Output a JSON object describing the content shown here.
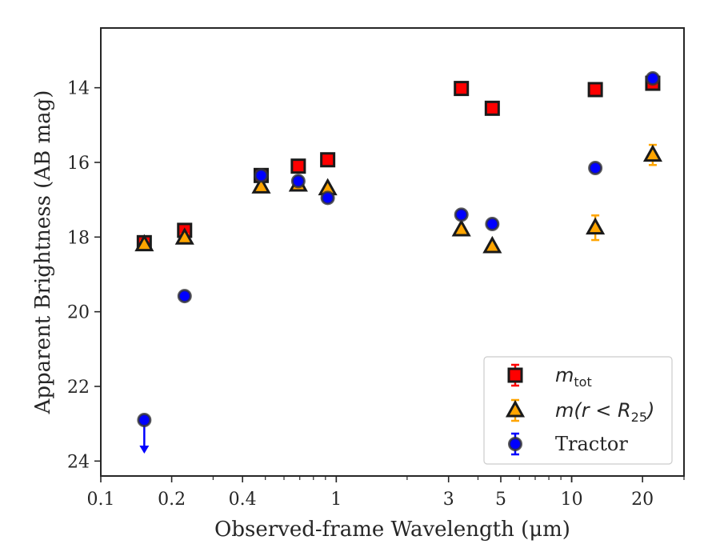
{
  "chart_data": {
    "type": "scatter",
    "xlabel": "Observed-frame Wavelength (μm)",
    "ylabel": "Apparent Brightness (AB mag)",
    "xscale": "log",
    "xlim": [
      0.1,
      30
    ],
    "ylim": [
      24.4,
      12.4
    ],
    "y_inverted": true,
    "x_ticks": [
      0.1,
      0.2,
      0.4,
      1,
      3,
      5,
      10,
      20
    ],
    "x_tick_labels": [
      "0.1",
      "0.2",
      "0.4",
      "1",
      "3",
      "5",
      "10",
      "20"
    ],
    "y_ticks": [
      14,
      16,
      18,
      20,
      22,
      24
    ],
    "y_tick_labels": [
      "14",
      "16",
      "18",
      "20",
      "22",
      "24"
    ],
    "grid": false,
    "legend_position": "lower right",
    "series": [
      {
        "name": "m_tot",
        "marker": "square",
        "color": "#ff0000",
        "edge": "#1a1a1a",
        "points": [
          {
            "x": 0.153,
            "y": 18.15,
            "err": 0.1
          },
          {
            "x": 0.227,
            "y": 17.82,
            "err": 0.1
          },
          {
            "x": 0.48,
            "y": 16.35,
            "err": 0.05
          },
          {
            "x": 0.69,
            "y": 16.1,
            "err": 0.05
          },
          {
            "x": 0.92,
            "y": 15.93,
            "err": 0.05
          },
          {
            "x": 3.4,
            "y": 14.02,
            "err": 0.05
          },
          {
            "x": 4.6,
            "y": 14.55,
            "err": 0.05
          },
          {
            "x": 12.6,
            "y": 14.05,
            "err": 0.05
          },
          {
            "x": 22.1,
            "y": 13.88,
            "err": 0.1
          }
        ]
      },
      {
        "name": "m(r < R25)",
        "marker": "triangle",
        "color": "#ffa500",
        "edge": "#1a1a1a",
        "points": [
          {
            "x": 0.153,
            "y": 18.2,
            "err": 0.1
          },
          {
            "x": 0.227,
            "y": 18.02,
            "err": 0.1
          },
          {
            "x": 0.48,
            "y": 16.65,
            "err": 0.05
          },
          {
            "x": 0.69,
            "y": 16.6,
            "err": 0.05
          },
          {
            "x": 0.92,
            "y": 16.7,
            "err": 0.05
          },
          {
            "x": 3.4,
            "y": 17.8,
            "err": 0.05
          },
          {
            "x": 4.6,
            "y": 18.25,
            "err": 0.05
          },
          {
            "x": 12.6,
            "y": 17.75,
            "err": 0.33
          },
          {
            "x": 22.1,
            "y": 15.8,
            "err": 0.27
          }
        ]
      },
      {
        "name": "Tractor",
        "marker": "circle",
        "color": "#0000ff",
        "edge": "#333333",
        "points": [
          {
            "x": 0.153,
            "y": 22.9,
            "err": 0,
            "upper_limit": true
          },
          {
            "x": 0.227,
            "y": 19.58,
            "err": 0.05
          },
          {
            "x": 0.48,
            "y": 16.35,
            "err": 0.05
          },
          {
            "x": 0.69,
            "y": 16.5,
            "err": 0.05
          },
          {
            "x": 0.92,
            "y": 16.95,
            "err": 0.05
          },
          {
            "x": 3.4,
            "y": 17.4,
            "err": 0.05
          },
          {
            "x": 4.6,
            "y": 17.65,
            "err": 0.05
          },
          {
            "x": 12.6,
            "y": 16.15,
            "err": 0.05
          },
          {
            "x": 22.1,
            "y": 13.75,
            "err": 0.05
          }
        ]
      }
    ],
    "legend": [
      {
        "base": "m",
        "sub": "tot"
      },
      {
        "base": "m(r < R",
        "sub": "25",
        "tail": ")"
      },
      {
        "text": "Tractor"
      }
    ]
  }
}
